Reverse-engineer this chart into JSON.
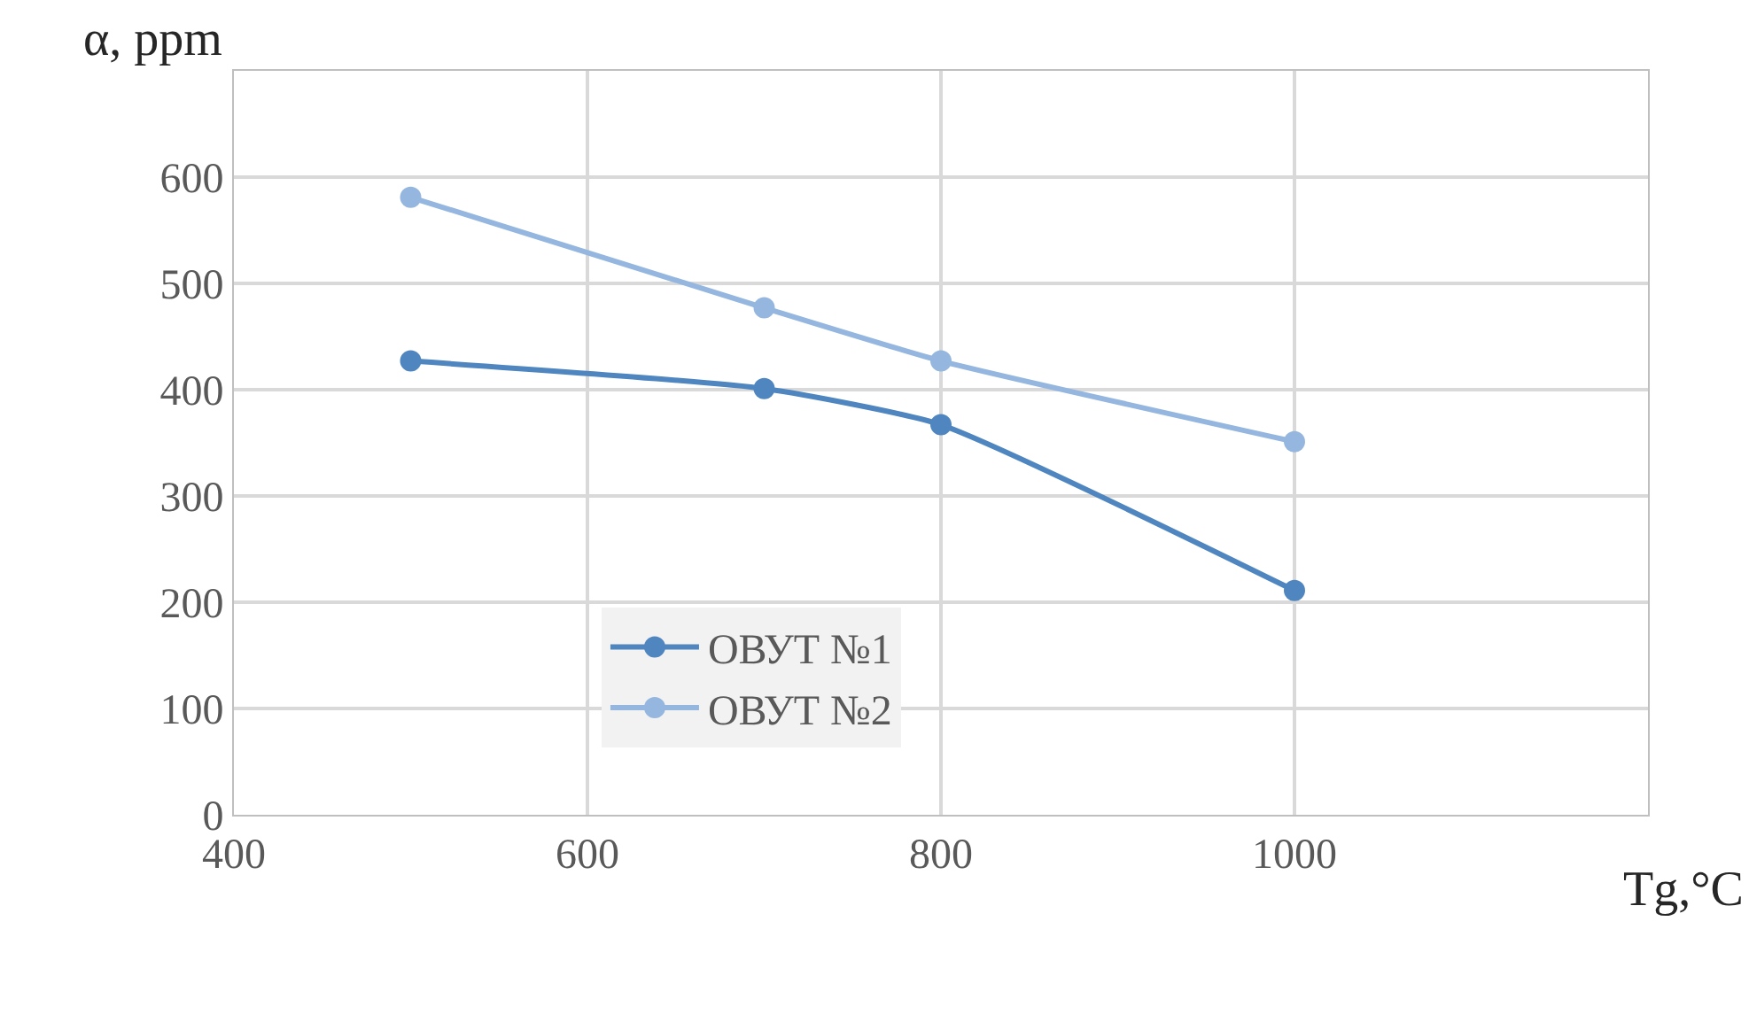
{
  "chart_data": {
    "type": "line",
    "ylabel": "α, ppm",
    "xlabel": "Tg,°C",
    "x": [
      500,
      700,
      800,
      1000
    ],
    "series": [
      {
        "name": "ОВУТ №1",
        "color": "#4f86c0",
        "values": [
          427,
          401,
          367,
          211
        ]
      },
      {
        "name": "ОВУТ №2",
        "color": "#95b7df",
        "values": [
          581,
          477,
          427,
          351
        ]
      }
    ],
    "xlim": [
      400,
      1200
    ],
    "xticks": [
      400,
      600,
      800,
      1000
    ],
    "ylim": [
      0,
      700
    ],
    "yticks": [
      0,
      100,
      200,
      300,
      400,
      500,
      600
    ],
    "grid": true,
    "legend": "bottom",
    "marker": "circle",
    "line_style": "solid"
  }
}
